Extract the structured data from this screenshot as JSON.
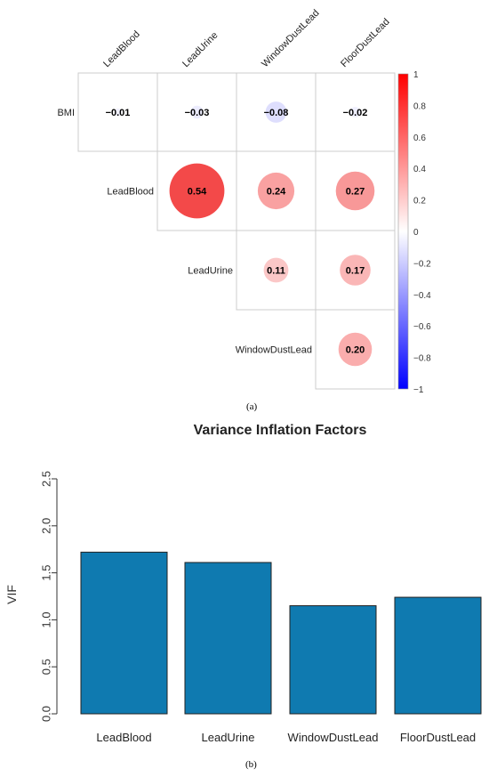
{
  "chart_data": [
    {
      "type": "heatmap",
      "subtype": "correlation-circles-upper-triangle",
      "columns": [
        "LeadBlood",
        "LeadUrine",
        "WindowDustLead",
        "FloorDustLead"
      ],
      "rows": [
        "BMI",
        "LeadBlood",
        "LeadUrine",
        "WindowDustLead"
      ],
      "cells": [
        {
          "row": "BMI",
          "col": "LeadBlood",
          "value": -0.01,
          "label": "−0.01"
        },
        {
          "row": "BMI",
          "col": "LeadUrine",
          "value": -0.03,
          "label": "−0.03"
        },
        {
          "row": "BMI",
          "col": "WindowDustLead",
          "value": -0.08,
          "label": "−0.08"
        },
        {
          "row": "BMI",
          "col": "FloorDustLead",
          "value": -0.02,
          "label": "−0.02"
        },
        {
          "row": "LeadBlood",
          "col": "LeadUrine",
          "value": 0.54,
          "label": "0.54"
        },
        {
          "row": "LeadBlood",
          "col": "WindowDustLead",
          "value": 0.24,
          "label": "0.24"
        },
        {
          "row": "LeadBlood",
          "col": "FloorDustLead",
          "value": 0.27,
          "label": "0.27"
        },
        {
          "row": "LeadUrine",
          "col": "WindowDustLead",
          "value": 0.11,
          "label": "0.11"
        },
        {
          "row": "LeadUrine",
          "col": "FloorDustLead",
          "value": 0.17,
          "label": "0.17"
        },
        {
          "row": "WindowDustLead",
          "col": "FloorDustLead",
          "value": 0.2,
          "label": "0.20"
        }
      ],
      "colorbar": {
        "ticks": [
          "1",
          "0.8",
          "0.6",
          "0.4",
          "0.2",
          "0",
          "−0.2",
          "−0.4",
          "−0.6",
          "−0.8",
          "−1"
        ],
        "range": [
          -1,
          1
        ],
        "colors": {
          "negative": "#0000ff",
          "zero": "#ffffff",
          "positive": "#ff0000"
        }
      },
      "caption": "(a)"
    },
    {
      "type": "bar",
      "title": "Variance Inflation Factors",
      "categories": [
        "LeadBlood",
        "LeadUrine",
        "WindowDustLead",
        "FloorDustLead"
      ],
      "values": [
        1.72,
        1.61,
        1.15,
        1.24
      ],
      "ylabel": "VIF",
      "xlabel": "",
      "ylim": [
        0,
        2.5
      ],
      "yticks": [
        "0.0",
        "0.5",
        "1.0",
        "1.5",
        "2.0",
        "2.5"
      ],
      "bar_color": "#0f7ab0",
      "grid": false,
      "caption": "(b)"
    }
  ]
}
